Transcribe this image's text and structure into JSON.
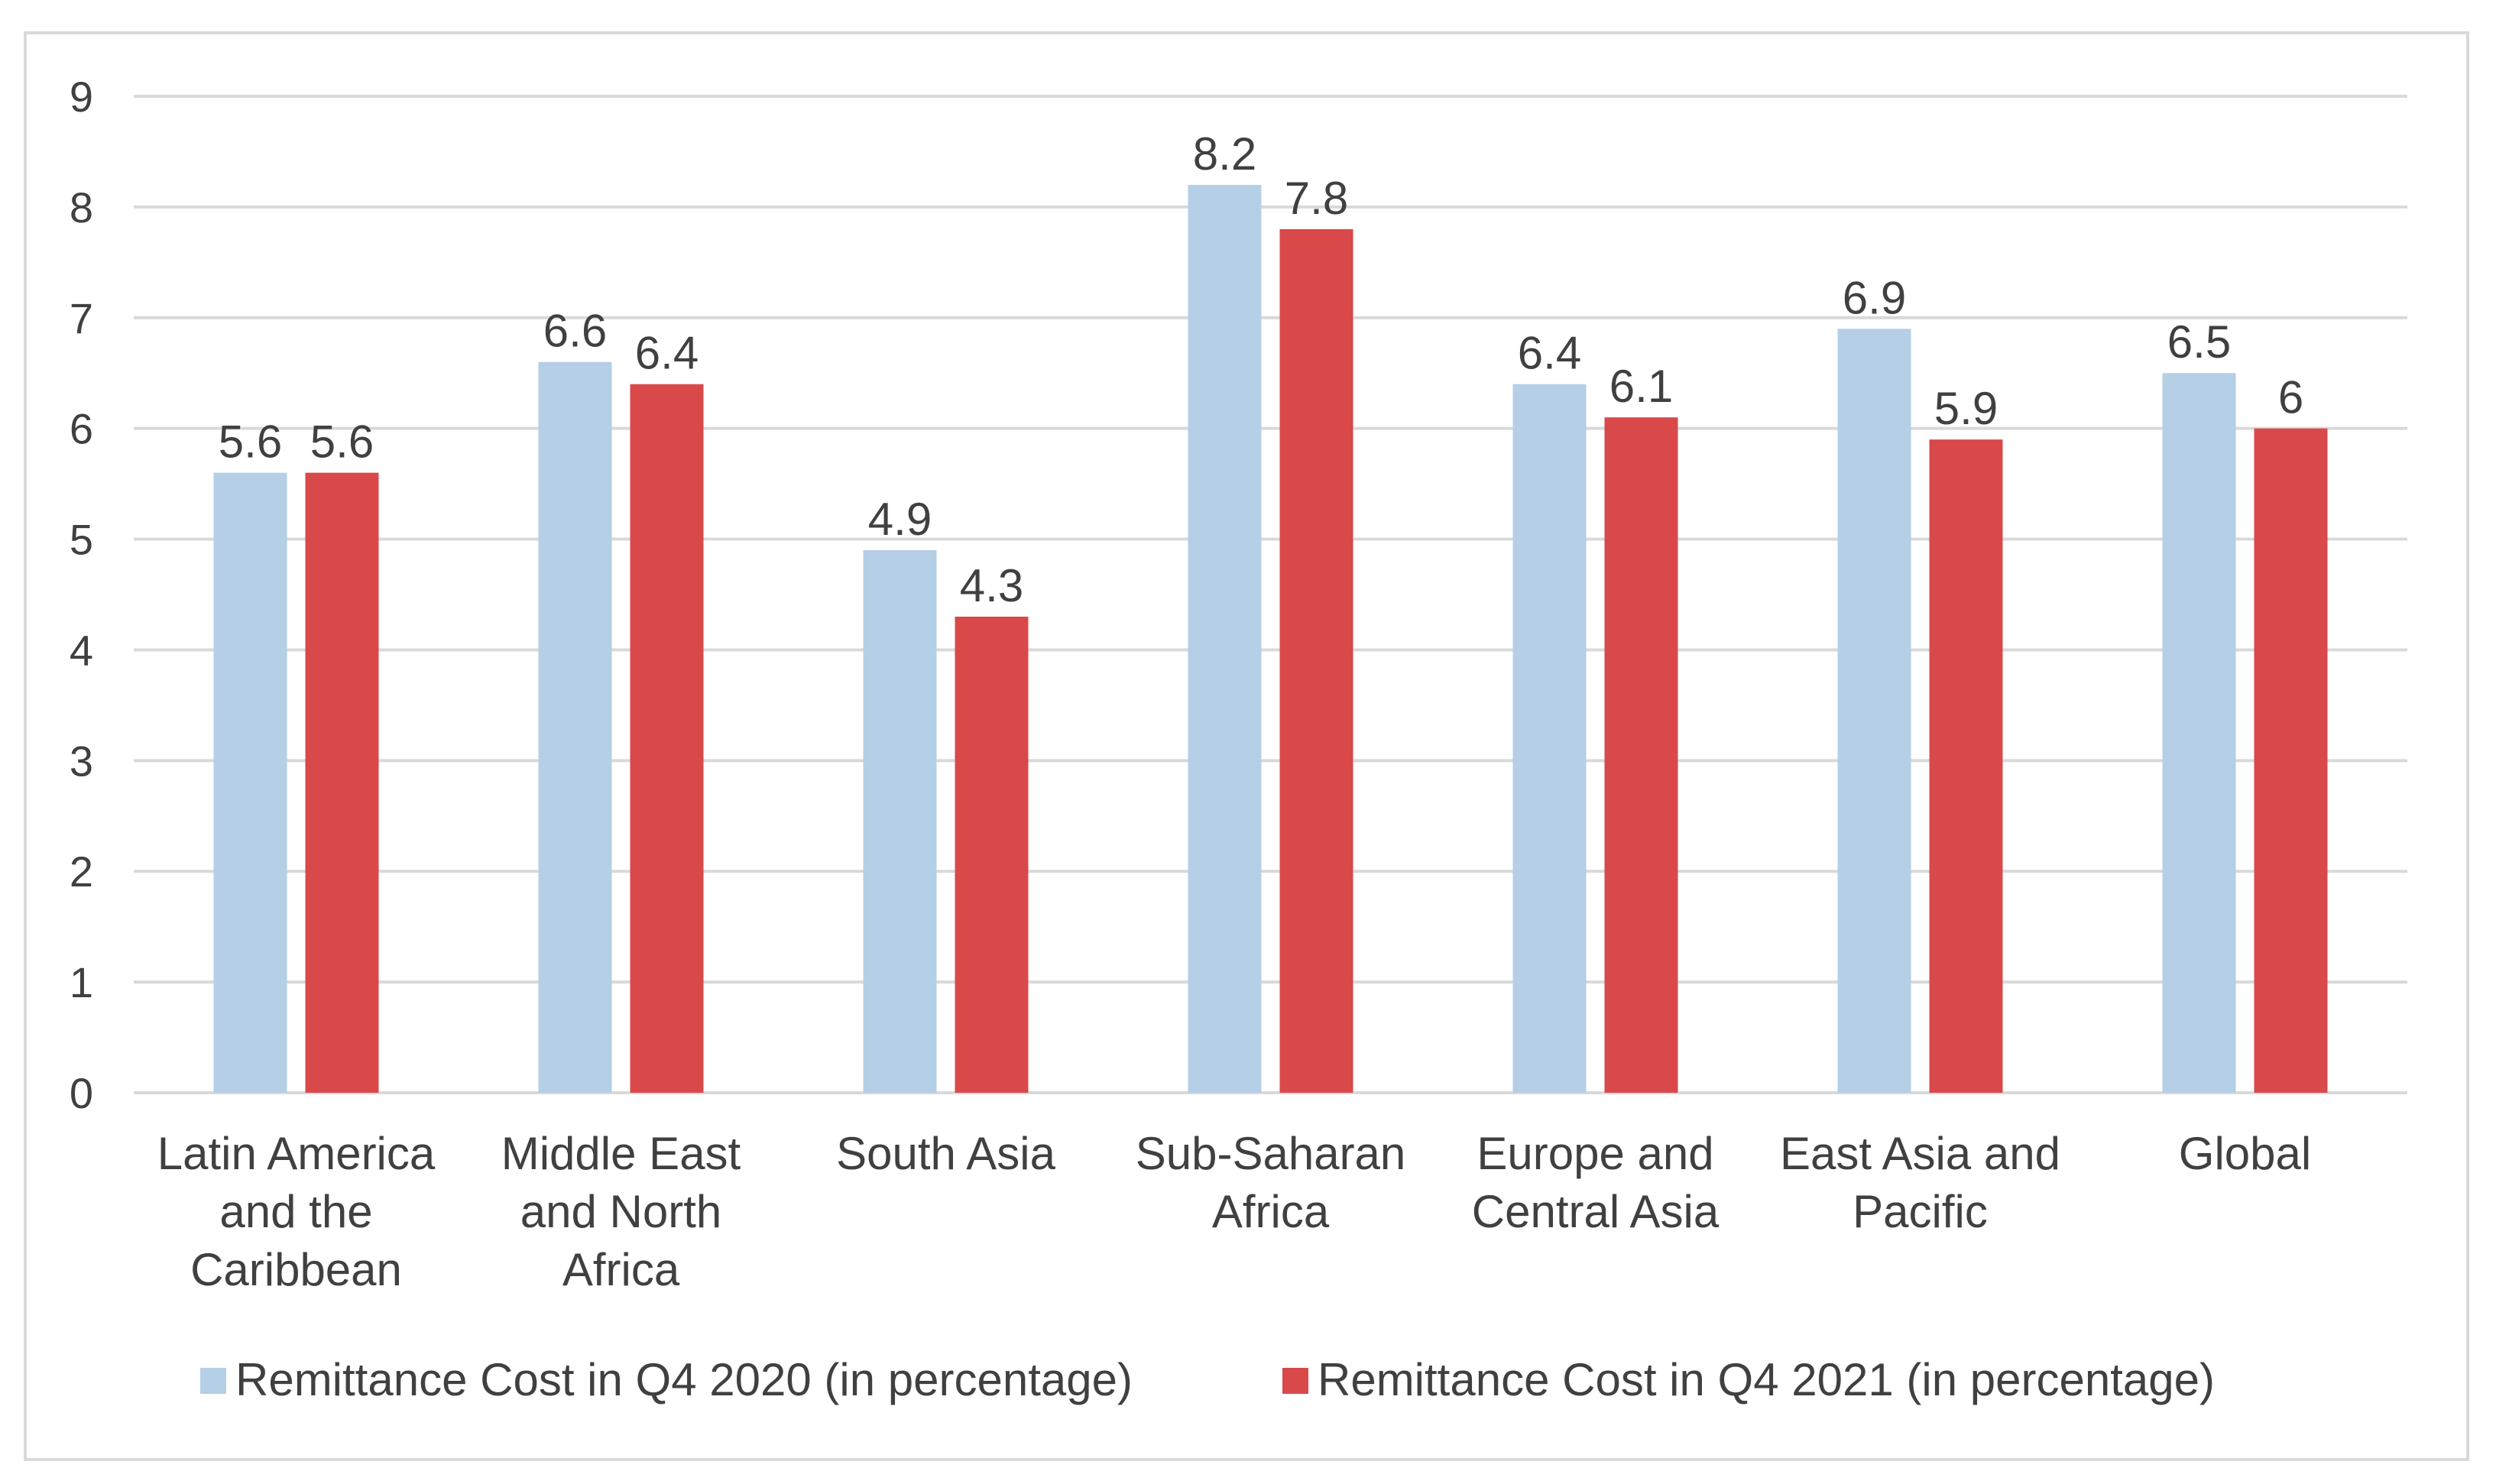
{
  "chart_data": {
    "type": "bar",
    "title": "",
    "xlabel": "",
    "ylabel": "",
    "ylim": [
      0,
      9
    ],
    "yticks": [
      0,
      1,
      2,
      3,
      4,
      5,
      6,
      7,
      8,
      9
    ],
    "grid": true,
    "legend_position": "bottom",
    "categories": [
      [
        "Latin America",
        "and the",
        "Caribbean"
      ],
      [
        "Middle East",
        "and North",
        "Africa"
      ],
      [
        "South Asia"
      ],
      [
        "Sub-Saharan",
        "Africa"
      ],
      [
        "Europe and",
        "Central Asia"
      ],
      [
        "East Asia and",
        "Pacific"
      ],
      [
        "Global"
      ]
    ],
    "series": [
      {
        "name": "Remittance Cost in Q4 2020 (in percentage)",
        "color": "#b4cfe6",
        "values": [
          5.6,
          6.6,
          4.9,
          8.2,
          6.4,
          6.9,
          6.5
        ]
      },
      {
        "name": "Remittance Cost in Q4 2021 (in percentage)",
        "color": "#d9494a",
        "values": [
          5.6,
          6.4,
          4.3,
          7.8,
          6.1,
          5.9,
          6
        ]
      }
    ]
  }
}
